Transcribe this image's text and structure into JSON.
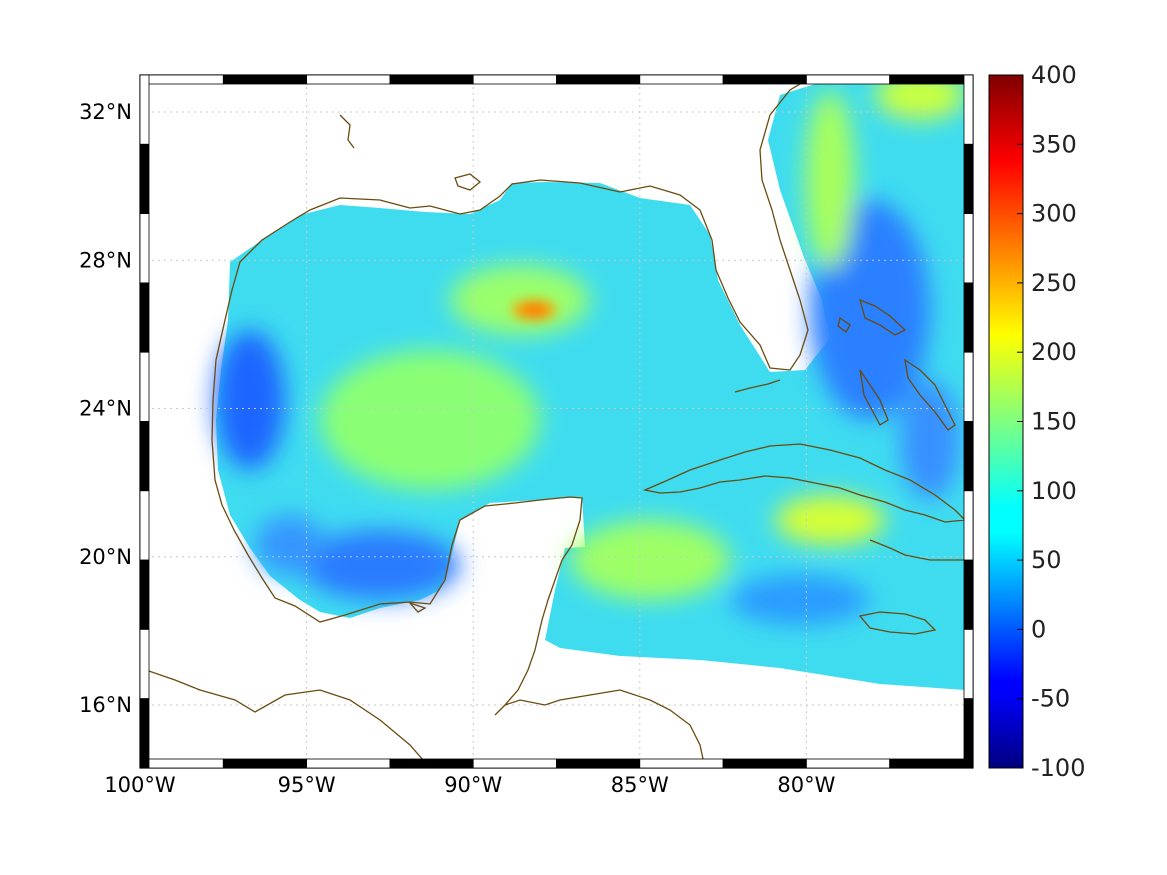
{
  "chart_data": {
    "type": "heatmap",
    "title": "",
    "xlabel": "",
    "ylabel": "",
    "projection": "geographic",
    "lon_range": [
      -100,
      -75
    ],
    "lat_range": [
      14.3,
      33.0
    ],
    "grid": true,
    "x_ticks": [
      {
        "value": -100,
        "label": "100°W"
      },
      {
        "value": -95,
        "label": "95°W"
      },
      {
        "value": -90,
        "label": "90°W"
      },
      {
        "value": -85,
        "label": "85°W"
      },
      {
        "value": -80,
        "label": "80°W"
      }
    ],
    "y_ticks": [
      {
        "value": 32,
        "label": "32°N"
      },
      {
        "value": 28,
        "label": "28°N"
      },
      {
        "value": 24,
        "label": "24°N"
      },
      {
        "value": 20,
        "label": "20°N"
      },
      {
        "value": 16,
        "label": "16°N"
      }
    ],
    "colorbar": {
      "colormap": "jet",
      "range": [
        -100,
        400
      ],
      "ticks": [
        {
          "value": 400,
          "label": "400"
        },
        {
          "value": 350,
          "label": "350"
        },
        {
          "value": 300,
          "label": "300"
        },
        {
          "value": 250,
          "label": "250"
        },
        {
          "value": 200,
          "label": "200"
        },
        {
          "value": 150,
          "label": "150"
        },
        {
          "value": 100,
          "label": "100"
        },
        {
          "value": 50,
          "label": "50"
        },
        {
          "value": 0,
          "label": "0"
        },
        {
          "value": -50,
          "label": "-50"
        },
        {
          "value": -100,
          "label": "-100"
        }
      ]
    },
    "field": {
      "typical_value": 110,
      "features": [
        {
          "region": "central Gulf maximum near 26.8°N 88.2°W",
          "value": 235
        },
        {
          "region": "eastern Cuba",
          "value": 185
        },
        {
          "region": "north Atlantic off Georgia/Carolina",
          "value": 170
        },
        {
          "region": "western Gulf off Texas/Mexico",
          "value": 50
        },
        {
          "region": "Bay of Campeche",
          "value": 55
        },
        {
          "region": "Atlantic east of Florida",
          "value": 60
        }
      ]
    },
    "coastline_color": "#6b4a0e"
  }
}
